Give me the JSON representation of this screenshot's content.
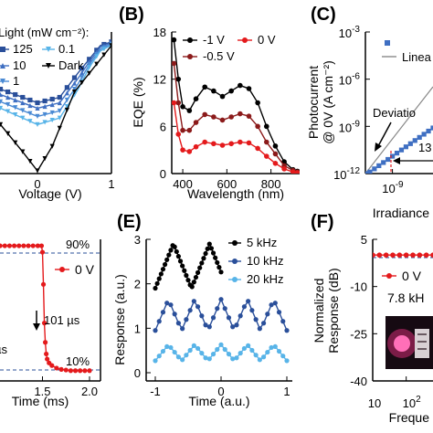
{
  "chart_data": [
    {
      "panel": "A",
      "type": "line",
      "xlabel": "Voltage (V)",
      "legend_title": "Light (mW cm⁻²):",
      "legend": [
        "125",
        "0.1",
        "10",
        "Dark",
        "1"
      ],
      "x_ticks": [
        "0",
        "1"
      ],
      "colors": [
        "#2a4f9a",
        "#58b4e8",
        "#3f6fc2",
        "#000000",
        "#4a8ad4"
      ],
      "series": [
        {
          "name": "125",
          "x": [
            -1.0,
            -0.5,
            0.0,
            0.3,
            0.55,
            0.7,
            0.85,
            1.0
          ],
          "y": [
            -0.55,
            -0.75,
            -1.0,
            -0.9,
            -0.45,
            -0.2,
            0.05,
            0.12
          ]
        },
        {
          "name": "10",
          "x": [
            -1.0,
            -0.5,
            0.0,
            0.3,
            0.55,
            0.7,
            0.85,
            1.0
          ],
          "y": [
            -0.68,
            -0.85,
            -1.1,
            -1.0,
            -0.55,
            -0.25,
            0.02,
            0.1
          ]
        },
        {
          "name": "1",
          "x": [
            -1.0,
            -0.5,
            0.0,
            0.3,
            0.55,
            0.7,
            0.85,
            1.0
          ],
          "y": [
            -0.82,
            -0.98,
            -1.25,
            -1.15,
            -0.65,
            -0.3,
            -0.02,
            0.08
          ]
        },
        {
          "name": "0.1",
          "x": [
            -1.0,
            -0.5,
            0.0,
            0.3,
            0.55,
            0.7,
            0.85,
            1.0
          ],
          "y": [
            -0.95,
            -1.1,
            -1.4,
            -1.28,
            -0.75,
            -0.35,
            -0.05,
            0.06
          ]
        },
        {
          "name": "Dark",
          "x": [
            -1.0,
            -0.5,
            -0.2,
            0.0,
            0.2,
            0.5,
            1.0
          ],
          "y": [
            -1.05,
            -1.4,
            -1.9,
            -2.25,
            -1.8,
            -0.8,
            0.05
          ]
        }
      ],
      "xlim": [
        -1.0,
        1.0
      ],
      "ylim": [
        -2.3,
        0.3
      ]
    },
    {
      "panel": "B",
      "type": "line",
      "xlabel": "Wavelength (nm)",
      "ylabel": "EQE (%)",
      "legend": [
        "-1 V",
        "0 V",
        "-0.5 V"
      ],
      "x_ticks": [
        "400",
        "600",
        "800"
      ],
      "y_ticks": [
        "0",
        "6",
        "12",
        "18"
      ],
      "xlim": [
        350,
        930
      ],
      "ylim": [
        0,
        18
      ],
      "colors": [
        "#000000",
        "#e41a1c",
        "#8b1a1a"
      ],
      "series": [
        {
          "name": "-1 V",
          "x": [
            360,
            380,
            400,
            430,
            460,
            500,
            540,
            580,
            620,
            660,
            700,
            740,
            780,
            820,
            860,
            900,
            920
          ],
          "y": [
            17.0,
            12.0,
            8.5,
            8.0,
            9.5,
            11.0,
            10.5,
            9.8,
            10.5,
            11.2,
            10.8,
            9.0,
            6.0,
            3.5,
            1.5,
            0.5,
            0.3
          ]
        },
        {
          "name": "-0.5 V",
          "x": [
            360,
            380,
            400,
            430,
            460,
            500,
            540,
            580,
            620,
            660,
            700,
            740,
            780,
            820,
            860,
            900,
            920
          ],
          "y": [
            14.0,
            9.0,
            5.5,
            5.5,
            6.5,
            7.5,
            7.2,
            6.8,
            7.2,
            7.6,
            7.3,
            6.0,
            4.0,
            2.5,
            1.0,
            0.4,
            0.2
          ]
        },
        {
          "name": "0 V",
          "x": [
            360,
            380,
            400,
            430,
            460,
            500,
            540,
            580,
            620,
            660,
            700,
            740,
            780,
            820,
            860,
            900,
            920
          ],
          "y": [
            9.0,
            5.0,
            3.0,
            2.8,
            3.4,
            4.0,
            3.8,
            3.6,
            3.8,
            4.0,
            3.9,
            3.2,
            2.2,
            1.3,
            0.6,
            0.2,
            0.1
          ]
        }
      ]
    },
    {
      "panel": "C",
      "type": "line",
      "xlabel": "Irradiance",
      "ylabel": "Photocurrent @ 0V (A cm⁻²)",
      "ylabel_lines": [
        "Photocurrent",
        "@ 0V (A cm⁻²)"
      ],
      "legend": [
        "",
        "Linea"
      ],
      "annotations": [
        "Deviatio",
        "13"
      ],
      "y_ticks_exp": [
        "-12",
        "-9",
        "-6",
        "-3"
      ],
      "x_ticks_exp": [
        "-9"
      ],
      "log_scale": true,
      "colors": [
        "#3f6fc2",
        "#888888"
      ],
      "series": [
        {
          "name": "",
          "log_x": [
            -10.2,
            -10.0,
            -9.8,
            -9.6,
            -9.4,
            -9.2,
            -9.0,
            -8.8,
            -8.6,
            -8.4,
            -8.2,
            -8.0,
            -7.8,
            -7.6,
            -7.4,
            -7.2,
            -7.0,
            -6.8,
            -6.6,
            -6.4,
            -6.2,
            -6.0,
            -5.8,
            -5.6,
            -5.4,
            -5.2,
            -5.0
          ],
          "log_y": [
            -12.0,
            -11.9,
            -11.7,
            -11.5,
            -11.3,
            -11.1,
            -10.9,
            -10.7,
            -10.5,
            -10.3,
            -10.1,
            -9.9,
            -9.7,
            -9.5,
            -9.3,
            -9.1,
            -8.9,
            -8.7,
            -8.5,
            -8.3,
            -8.1,
            -7.9,
            -7.7,
            -7.5,
            -7.3,
            -7.1,
            -6.9
          ]
        }
      ]
    },
    {
      "panel": "D",
      "type": "line",
      "xlabel": "Time (ms)",
      "legend": [
        "0 V"
      ],
      "annotations": [
        "90%",
        "10%",
        "101 µs",
        "µs"
      ],
      "x_ticks": [
        "1.5",
        "2.0"
      ],
      "xlim": [
        1.0,
        2.0
      ],
      "ylim": [
        0,
        1.05
      ],
      "colors": [
        "#e41a1c"
      ],
      "series": [
        {
          "name": "0 V",
          "x": [
            1.0,
            1.05,
            1.1,
            1.15,
            1.2,
            1.25,
            1.3,
            1.35,
            1.4,
            1.45,
            1.49,
            1.5,
            1.51,
            1.52,
            1.53,
            1.54,
            1.55,
            1.57,
            1.6,
            1.65,
            1.7,
            1.75,
            1.8,
            1.85,
            1.9,
            1.95,
            2.0
          ],
          "y": [
            1.0,
            1.0,
            1.0,
            1.0,
            1.0,
            1.0,
            1.0,
            1.0,
            1.0,
            1.0,
            1.0,
            0.95,
            0.7,
            0.4,
            0.25,
            0.16,
            0.12,
            0.09,
            0.07,
            0.05,
            0.04,
            0.035,
            0.03,
            0.03,
            0.03,
            0.03,
            0.03
          ]
        }
      ]
    },
    {
      "panel": "E",
      "type": "line",
      "xlabel": "Time (a.u.)",
      "ylabel": "Response (a.u.)",
      "legend": [
        "5 kHz",
        "10 kHz",
        "20 kHz"
      ],
      "x_ticks": [
        "-1",
        "0",
        "1"
      ],
      "y_ticks": [
        "0",
        "1",
        "2",
        "3"
      ],
      "xlim": [
        -1,
        1
      ],
      "ylim": [
        0,
        3
      ],
      "colors": [
        "#000000",
        "#2a4f9a",
        "#58b4e8"
      ],
      "series": [
        {
          "name": "5 kHz",
          "x_range": [
            -1,
            0
          ],
          "center": 2.4,
          "amplitude": 0.5,
          "period": 0.55
        },
        {
          "name": "10 kHz",
          "x_range": [
            -1,
            1
          ],
          "center": 1.3,
          "amplitude": 0.35,
          "period": 0.4
        },
        {
          "name": "20 kHz",
          "x_range": [
            -1,
            1
          ],
          "center": 0.45,
          "amplitude": 0.18,
          "period": 0.4
        }
      ]
    },
    {
      "panel": "F",
      "type": "line",
      "xlabel": "Freque",
      "ylabel": "Normalized Response (dB)",
      "ylabel_lines": [
        "Normalized",
        "Response (dB)"
      ],
      "legend": [
        "0 V"
      ],
      "annotations": [
        "7.8 kH"
      ],
      "x_ticks": [
        "10"
      ],
      "x_ticks_exp": [
        "2"
      ],
      "y_ticks": [
        "5",
        "-10",
        "-25",
        "-40"
      ],
      "ylim": [
        -40,
        5
      ],
      "colors": [
        "#e41a1c"
      ],
      "series": [
        {
          "name": "0 V",
          "log_x": [
            1.0,
            1.2,
            1.4,
            1.6,
            1.8,
            2.0,
            2.2,
            2.4,
            2.6,
            2.8
          ],
          "y": [
            0,
            0,
            0,
            0,
            0,
            0,
            0,
            0,
            0,
            0
          ]
        }
      ]
    }
  ],
  "panels": {
    "A": {
      "label": ""
    },
    "B": {
      "label": "(B)"
    },
    "C": {
      "label": "(C)"
    },
    "D": {
      "label": ""
    },
    "E": {
      "label": "(E)"
    },
    "F": {
      "label": "(F)"
    }
  },
  "exp_base": "10"
}
